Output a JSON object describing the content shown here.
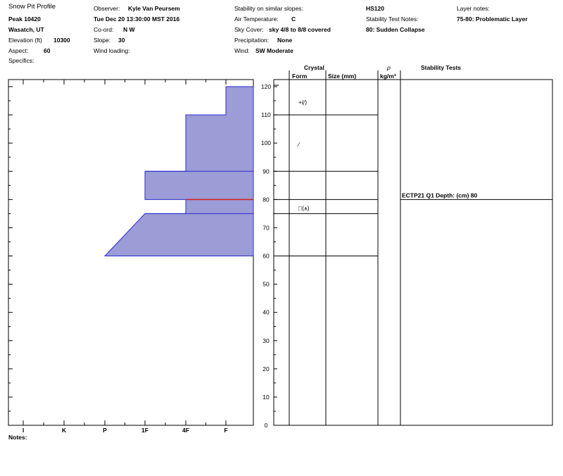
{
  "header": {
    "title": "Snow Pit Profile",
    "site": "Peak 10420",
    "location": "Wasatch, UT",
    "elevation_label": "Elevation (ft)",
    "elevation_value": "10300",
    "aspect_label": "Aspect:",
    "aspect_value": "60",
    "specifics_label": "Specifics:",
    "observer_label": "Observer:",
    "observer_value": "Kyle Van Peursem",
    "datetime": "Tue Dec 20 13:30:00 MST 2016",
    "coord_label": "Co-ord:",
    "coord_value": "N  W",
    "slope_label": "Slope:",
    "slope_value": "30",
    "wind_loading_label": "Wind loading:",
    "stability_similar_label": "Stability on similar slopes:",
    "air_temp_label": "Air Temperature:",
    "air_temp_value": "C",
    "sky_cover_label": "Sky Cover:",
    "sky_cover_value": "sky 4/8 to 8/8 covered",
    "precip_label": "Precipitation:",
    "precip_value": "None",
    "wind_label": "Wind:",
    "wind_value": "SW Moderate",
    "hs": "HS120",
    "stability_test_notes_label": "Stability Test Notes:",
    "stability_test_note": "80: Sudden Collapse",
    "layer_notes_label": "Layer notes:",
    "layer_note": "75-80: Problematic Layer"
  },
  "columns": {
    "crystal": "Crystal",
    "form": "Form",
    "size": "Size (mm)",
    "rho": "ρ",
    "rho_units": "kg/m³",
    "stability_tests": "Stability Tests"
  },
  "notes_label": "Notes:",
  "colors": {
    "layer_fill": "#9c9cd6",
    "layer_stroke": "#2b2bcf",
    "weak_layer": "#d42020",
    "line": "#000000"
  },
  "chart_data": {
    "type": "area",
    "title": "",
    "xlabel": "",
    "ylabel": "",
    "ylim": [
      0,
      120
    ],
    "y_ticks": [
      0,
      10,
      20,
      30,
      40,
      50,
      60,
      70,
      80,
      90,
      100,
      110,
      120
    ],
    "hardness_categories": [
      "I",
      "K",
      "P",
      "1F",
      "4F",
      "F"
    ],
    "hardness_profile": [
      {
        "height_cm": 120,
        "hardness": "F"
      },
      {
        "height_cm": 110,
        "hardness": "F"
      },
      {
        "height_cm": 110,
        "hardness": "4F"
      },
      {
        "height_cm": 90,
        "hardness": "4F"
      },
      {
        "height_cm": 90,
        "hardness": "1F"
      },
      {
        "height_cm": 80,
        "hardness": "1F"
      },
      {
        "height_cm": 80,
        "hardness": "4F"
      },
      {
        "height_cm": 75,
        "hardness": "4F"
      },
      {
        "height_cm": 75,
        "hardness": "1F"
      },
      {
        "height_cm": 60,
        "hardness": "P"
      }
    ],
    "layer_boundaries": [
      110,
      90,
      80,
      75,
      60
    ],
    "weak_layer_height": 80,
    "crystal_forms": [
      {
        "height_cm": 115,
        "symbol": "+(⁄)"
      },
      {
        "height_cm": 100,
        "symbol": "⁄"
      },
      {
        "height_cm": 77.5,
        "symbol": "□(⩚)"
      }
    ],
    "stability_tests": [
      {
        "height_cm": 80,
        "label": "ECTP21 Q1 Depth: (cm) 80"
      }
    ]
  }
}
